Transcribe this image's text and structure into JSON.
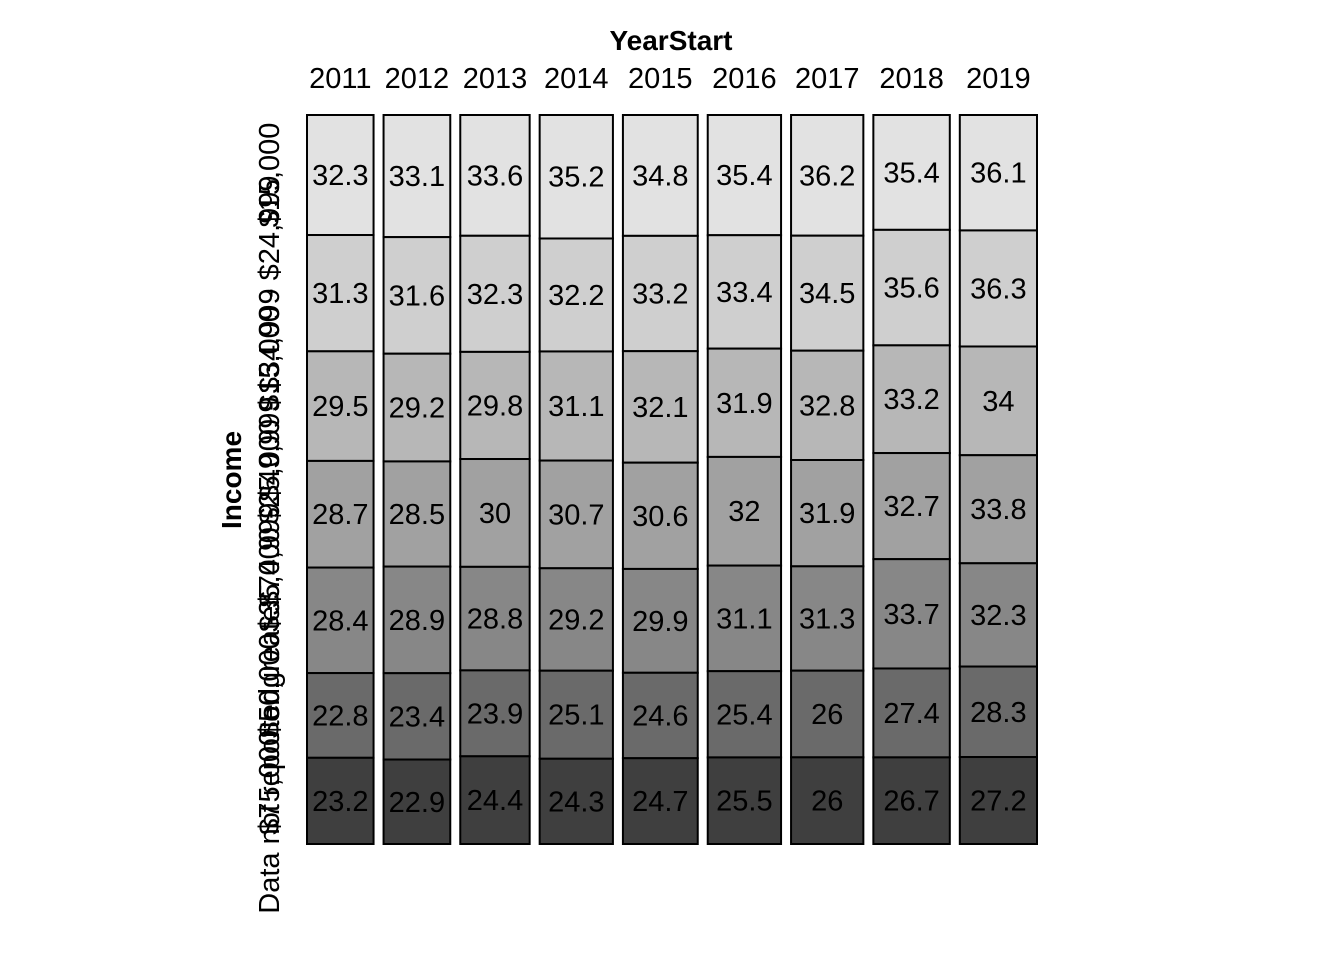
{
  "chart_data": {
    "type": "mosaic",
    "x_title": "YearStart",
    "y_title": "Income",
    "columns": [
      "2011",
      "2012",
      "2013",
      "2014",
      "2015",
      "2016",
      "2017",
      "2018",
      "2019"
    ],
    "rows": [
      "$15,000",
      "$15,000 - $24,999",
      "$25,000 - $34,999",
      "$35,000 - $49,999",
      "$50,000 - $74,999",
      "$75,000 or greater",
      "Data not reported"
    ],
    "values": [
      [
        32.3,
        31.3,
        29.5,
        28.7,
        28.4,
        22.8,
        23.2
      ],
      [
        33.1,
        31.6,
        29.2,
        28.5,
        28.9,
        23.4,
        22.9
      ],
      [
        33.6,
        32.3,
        29.8,
        30,
        28.8,
        23.9,
        24.4
      ],
      [
        35.2,
        32.2,
        31.1,
        30.7,
        29.2,
        25.1,
        24.3
      ],
      [
        34.8,
        33.2,
        32.1,
        30.6,
        29.9,
        24.6,
        24.7
      ],
      [
        35.4,
        33.4,
        31.9,
        32,
        31.1,
        25.4,
        25.5
      ],
      [
        36.2,
        34.5,
        32.8,
        31.9,
        31.3,
        26,
        26
      ],
      [
        35.4,
        35.6,
        33.2,
        32.7,
        33.7,
        27.4,
        26.7
      ],
      [
        36.1,
        36.3,
        34,
        33.8,
        32.3,
        28.3,
        27.2
      ]
    ],
    "column_weights": [
      0.0895,
      0.0897,
      0.0933,
      0.0985,
      0.1006,
      0.0986,
      0.0972,
      0.1028,
      0.1038
    ],
    "row_colors": [
      "#e2e2e2",
      "#cfcfcf",
      "#b7b7b7",
      "#a1a1a1",
      "#878787",
      "#6a6a6a",
      "#3f3f3f"
    ],
    "stroke_color": "#000000",
    "grid": false,
    "legend": "none"
  }
}
